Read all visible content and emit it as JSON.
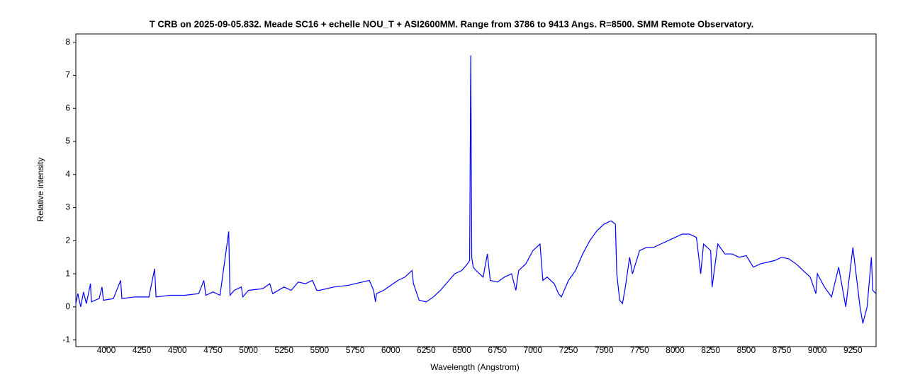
{
  "chart_data": {
    "type": "line",
    "title": "T CRB on  2025-09-05.832.  Meade SC16 +  echelle NOU_T + ASI2600MM.  Range from 3786 to 9413 Angs. R=8500.  SMM Remote Observatory.",
    "xlabel": "Wavelength (Angstrom)",
    "ylabel": "Relative intensity",
    "xlim": [
      3786,
      9413
    ],
    "ylim": [
      -1.2,
      8.25
    ],
    "xticks": [
      4000,
      4250,
      4500,
      4750,
      5000,
      5250,
      5500,
      5750,
      6000,
      6250,
      6500,
      6750,
      7000,
      7250,
      7500,
      7750,
      8000,
      8250,
      8500,
      8750,
      9000,
      9250
    ],
    "yticks": [
      -1,
      0,
      1,
      2,
      3,
      4,
      5,
      6,
      7,
      8
    ],
    "grid": false,
    "x": [
      3786,
      3800,
      3820,
      3840,
      3860,
      3889,
      3895,
      3920,
      3950,
      3970,
      3980,
      4050,
      4101,
      4110,
      4200,
      4300,
      4340,
      4350,
      4450,
      4550,
      4650,
      4686,
      4700,
      4750,
      4800,
      4861,
      4870,
      4900,
      4950,
      4960,
      5000,
      5100,
      5150,
      5170,
      5250,
      5300,
      5350,
      5400,
      5450,
      5480,
      5500,
      5600,
      5700,
      5800,
      5850,
      5880,
      5893,
      5900,
      5950,
      6000,
      6050,
      6100,
      6150,
      6160,
      6200,
      6250,
      6300,
      6350,
      6400,
      6450,
      6500,
      6540,
      6555,
      6563,
      6570,
      6580,
      6600,
      6650,
      6680,
      6700,
      6750,
      6800,
      6850,
      6880,
      6900,
      6950,
      7000,
      7050,
      7070,
      7100,
      7150,
      7180,
      7200,
      7250,
      7300,
      7350,
      7400,
      7450,
      7500,
      7550,
      7580,
      7590,
      7610,
      7630,
      7650,
      7680,
      7700,
      7750,
      7800,
      7850,
      7900,
      7950,
      8000,
      8050,
      8100,
      8150,
      8180,
      8200,
      8250,
      8260,
      8300,
      8350,
      8400,
      8450,
      8500,
      8550,
      8600,
      8650,
      8700,
      8750,
      8800,
      8850,
      8900,
      8950,
      8990,
      9000,
      9050,
      9100,
      9150,
      9200,
      9250,
      9300,
      9320,
      9350,
      9380,
      9390,
      9413
    ],
    "series": [
      {
        "name": "T CRB",
        "color": "#0000ff",
        "values": [
          0.1,
          0.4,
          0.0,
          0.45,
          0.1,
          0.7,
          0.15,
          0.2,
          0.25,
          0.6,
          0.2,
          0.25,
          0.8,
          0.25,
          0.3,
          0.3,
          1.15,
          0.3,
          0.35,
          0.35,
          0.4,
          0.8,
          0.35,
          0.45,
          0.35,
          2.28,
          0.35,
          0.5,
          0.6,
          0.3,
          0.5,
          0.55,
          0.7,
          0.4,
          0.6,
          0.5,
          0.75,
          0.7,
          0.8,
          0.5,
          0.5,
          0.6,
          0.65,
          0.75,
          0.8,
          0.5,
          0.15,
          0.4,
          0.5,
          0.65,
          0.8,
          0.9,
          1.1,
          0.7,
          0.2,
          0.15,
          0.3,
          0.5,
          0.75,
          1.0,
          1.1,
          1.3,
          1.4,
          7.6,
          1.5,
          1.2,
          1.1,
          0.9,
          1.6,
          0.8,
          0.75,
          0.9,
          1.0,
          0.5,
          1.1,
          1.3,
          1.7,
          1.9,
          0.8,
          0.9,
          0.7,
          0.4,
          0.3,
          0.8,
          1.1,
          1.6,
          2.0,
          2.3,
          2.5,
          2.6,
          2.5,
          1.0,
          0.2,
          0.1,
          0.6,
          1.5,
          1.0,
          1.7,
          1.8,
          1.8,
          1.9,
          2.0,
          2.1,
          2.2,
          2.2,
          2.1,
          1.0,
          1.9,
          1.7,
          0.6,
          1.9,
          1.6,
          1.6,
          1.5,
          1.55,
          1.2,
          1.3,
          1.35,
          1.4,
          1.5,
          1.45,
          1.3,
          1.1,
          0.9,
          0.4,
          1.0,
          0.6,
          0.3,
          1.2,
          0.0,
          1.8,
          0.0,
          -0.5,
          0.0,
          1.5,
          0.5,
          0.4
        ]
      }
    ]
  }
}
